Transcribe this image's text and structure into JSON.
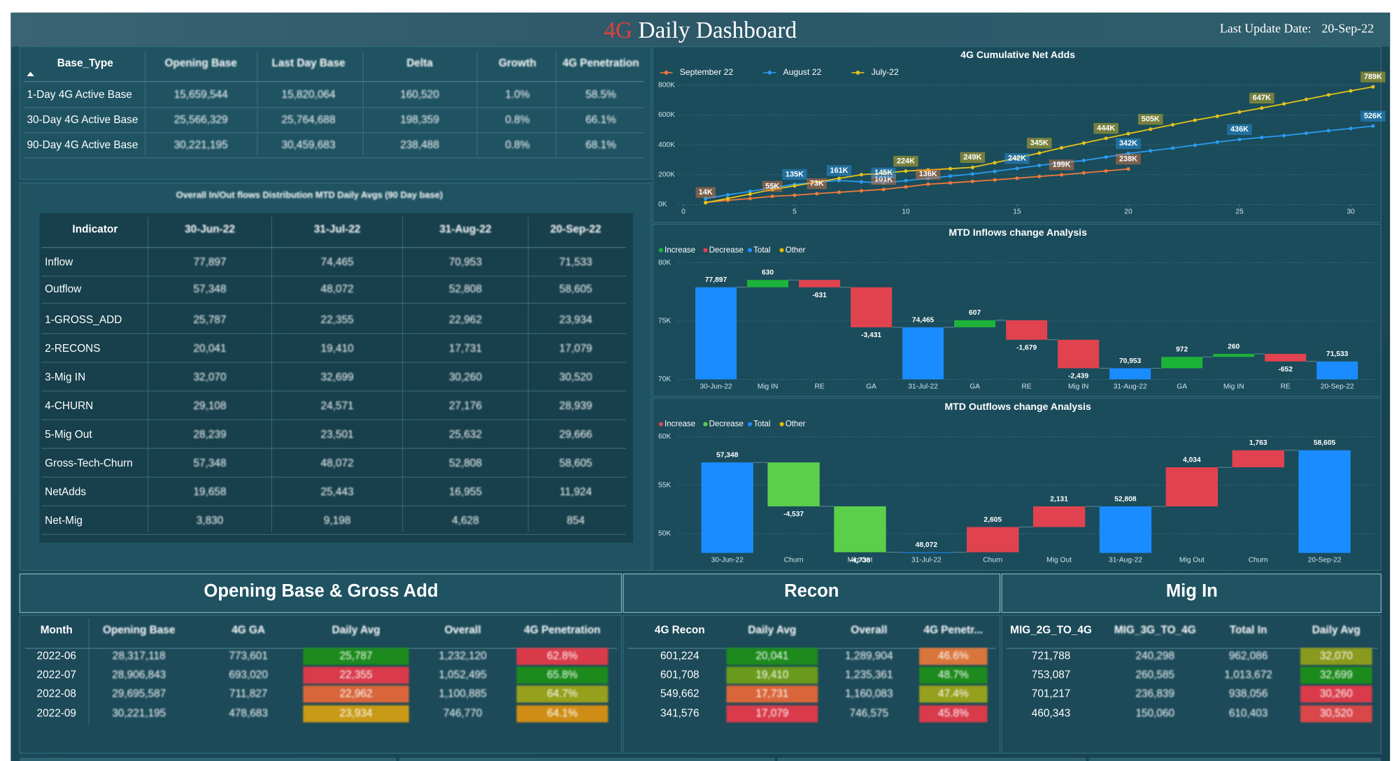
{
  "header": {
    "title_highlight": "4G",
    "title": "Daily Dashboard",
    "update_label": "Last Update Date:",
    "update_date": "20-Sep-22"
  },
  "base_table": {
    "columns": [
      "Base_Type",
      "Opening Base",
      "Last Day Base",
      "Delta",
      "Growth",
      "4G Penetration"
    ],
    "rows": [
      [
        "1-Day 4G Active Base",
        "15,659,544",
        "15,820,064",
        "160,520",
        "1.0%",
        "58.5%"
      ],
      [
        "30-Day 4G Active Base",
        "25,566,329",
        "25,764,688",
        "198,359",
        "0.8%",
        "66.1%"
      ],
      [
        "90-Day 4G Active Base",
        "30,221,195",
        "30,459,683",
        "238,488",
        "0.8%",
        "68.1%"
      ]
    ]
  },
  "flows_table": {
    "title": "Overall In/Out flows Distribution MTD Daily Avgs (90 Day base)",
    "columns": [
      "Indicator",
      "30-Jun-22",
      "31-Jul-22",
      "31-Aug-22",
      "20-Sep-22"
    ],
    "rows": [
      [
        "Inflow",
        "77,897",
        "74,465",
        "70,953",
        "71,533"
      ],
      [
        "Outflow",
        "57,348",
        "48,072",
        "52,808",
        "58,605"
      ],
      [
        "1-GROSS_ADD",
        "25,787",
        "22,355",
        "22,962",
        "23,934"
      ],
      [
        "2-RECONS",
        "20,041",
        "19,410",
        "17,731",
        "17,079"
      ],
      [
        "3-Mig IN",
        "32,070",
        "32,699",
        "30,260",
        "30,520"
      ],
      [
        "4-CHURN",
        "29,108",
        "24,571",
        "27,176",
        "28,939"
      ],
      [
        "5-Mig Out",
        "28,239",
        "23,501",
        "25,632",
        "29,666"
      ],
      [
        "Gross-Tech-Churn",
        "57,348",
        "48,072",
        "52,808",
        "58,605"
      ],
      [
        "NetAdds",
        "19,658",
        "25,443",
        "16,955",
        "11,924"
      ],
      [
        "Net-Mig",
        "3,830",
        "9,198",
        "4,628",
        "854"
      ]
    ]
  },
  "opening_table": {
    "title": "Opening Base & Gross Add",
    "columns": [
      "Month",
      "Opening Base",
      "4G GA",
      "Daily Avg",
      "Overall",
      "4G Penetration"
    ],
    "rows": [
      [
        "2022-06",
        "28,317,118",
        "773,601",
        "25,787",
        "1,232,120",
        "62.8%"
      ],
      [
        "2022-07",
        "28,906,843",
        "693,020",
        "22,355",
        "1,052,495",
        "65.8%"
      ],
      [
        "2022-08",
        "29,695,587",
        "711,827",
        "22,962",
        "1,100,885",
        "64.7%"
      ],
      [
        "2022-09",
        "30,221,195",
        "478,683",
        "23,934",
        "746,770",
        "64.1%"
      ]
    ],
    "cell_colors": {
      "3": [
        "#1f8a1f",
        "#d93b4c",
        "#d9663a",
        "#c99a12"
      ],
      "5": [
        "#d93b4c",
        "#1f8a1f",
        "#96a01a",
        "#cf8d18"
      ]
    }
  },
  "recon_table": {
    "title": "Recon",
    "columns": [
      "4G Recon",
      "Daily Avg",
      "Overall",
      "4G Penetr..."
    ],
    "rows": [
      [
        "601,224",
        "20,041",
        "1,289,904",
        "46.6%"
      ],
      [
        "601,708",
        "19,410",
        "1,235,361",
        "48.7%"
      ],
      [
        "549,662",
        "17,731",
        "1,160,083",
        "47.4%"
      ],
      [
        "341,576",
        "17,079",
        "746,575",
        "45.8%"
      ]
    ],
    "cell_colors": {
      "1": [
        "#1f8a1f",
        "#6a9a1a",
        "#d9663a",
        "#d93b4c"
      ],
      "3": [
        "#d9763a",
        "#1f8a1f",
        "#96a01a",
        "#d93b4c"
      ]
    }
  },
  "mig_in_table": {
    "title": "Mig In",
    "columns": [
      "MIG_2G_TO_4G",
      "MIG_3G_TO_4G",
      "Total In",
      "Daily Avg"
    ],
    "rows": [
      [
        "721,788",
        "240,298",
        "962,086",
        "32,070"
      ],
      [
        "753,087",
        "260,585",
        "1,013,672",
        "32,699"
      ],
      [
        "701,217",
        "236,839",
        "938,056",
        "30,260"
      ],
      [
        "460,343",
        "150,060",
        "610,403",
        "30,520"
      ]
    ],
    "cell_colors": {
      "3": [
        "#8a9a1a",
        "#1f8a1f",
        "#d93b4c",
        "#d9464a"
      ]
    }
  },
  "chart_data": [
    {
      "type": "line",
      "title": "4G Cumulative Net Adds",
      "x": [
        1,
        2,
        3,
        4,
        5,
        6,
        7,
        8,
        9,
        10,
        11,
        12,
        13,
        14,
        15,
        16,
        17,
        18,
        19,
        20,
        21,
        22,
        23,
        24,
        25,
        26,
        27,
        28,
        29,
        30,
        31
      ],
      "xlim": [
        0,
        31
      ],
      "xticks": [
        0,
        5,
        10,
        15,
        20,
        25,
        30
      ],
      "ylim": [
        0,
        800000
      ],
      "yticks": [
        {
          "value": 0,
          "label": "0K"
        },
        {
          "value": 200000,
          "label": "200K"
        },
        {
          "value": 400000,
          "label": "400K"
        },
        {
          "value": 600000,
          "label": "600K"
        },
        {
          "value": 800000,
          "label": "800K"
        }
      ],
      "grid": true,
      "series": [
        {
          "name": "September 22",
          "color": "#f07a3a",
          "values": [
            14000,
            28000,
            40000,
            55000,
            62000,
            73000,
            82000,
            92000,
            101000,
            118000,
            136000,
            145000,
            155000,
            165000,
            176000,
            188000,
            199000,
            212000,
            225000,
            238000,
            null,
            null,
            null,
            null,
            null,
            null,
            null,
            null,
            null,
            null,
            null
          ],
          "value_labels": [
            "14K",
            null,
            null,
            "55K",
            null,
            "73K",
            null,
            null,
            "101K",
            null,
            "136K",
            null,
            null,
            null,
            null,
            null,
            "199K",
            null,
            null,
            "238K",
            null,
            null,
            null,
            null,
            null,
            null,
            null,
            null,
            null,
            null,
            null
          ]
        },
        {
          "name": "August 22",
          "color": "#2a9bf0",
          "values": [
            40000,
            65000,
            88000,
            112000,
            135000,
            148000,
            161000,
            152000,
            145000,
            160000,
            175000,
            190000,
            205000,
            222000,
            242000,
            262000,
            280000,
            295000,
            318000,
            342000,
            360000,
            378000,
            398000,
            418000,
            436000,
            450000,
            462000,
            478000,
            495000,
            510000,
            526000
          ],
          "value_labels": [
            null,
            null,
            null,
            null,
            "135K",
            null,
            "161K",
            null,
            "145K",
            null,
            null,
            null,
            null,
            null,
            "242K",
            null,
            null,
            null,
            null,
            "342K",
            null,
            null,
            null,
            null,
            "436K",
            null,
            null,
            null,
            null,
            null,
            "526K"
          ]
        },
        {
          "name": "July-22",
          "color": "#e6c21a",
          "values": [
            12000,
            40000,
            70000,
            100000,
            125000,
            150000,
            175000,
            200000,
            210000,
            224000,
            232000,
            240000,
            249000,
            280000,
            312000,
            345000,
            380000,
            412000,
            444000,
            475000,
            505000,
            535000,
            565000,
            592000,
            620000,
            647000,
            675000,
            705000,
            735000,
            762000,
            789000
          ],
          "value_labels": [
            null,
            null,
            null,
            null,
            null,
            null,
            null,
            null,
            null,
            "224K",
            null,
            null,
            "249K",
            null,
            null,
            "345K",
            null,
            null,
            "444K",
            null,
            "505K",
            null,
            null,
            null,
            null,
            "647K",
            null,
            null,
            null,
            null,
            "789K"
          ]
        }
      ]
    },
    {
      "type": "waterfall",
      "title": "MTD Inflows change Analysis",
      "categories": [
        "30-Jun-22",
        "Mig IN",
        "RE",
        "GA",
        "31-Jul-22",
        "GA",
        "RE",
        "Mig IN",
        "31-Aug-22",
        "GA",
        "Mig IN",
        "RE",
        "20-Sep-22"
      ],
      "ylim": [
        70000,
        80000
      ],
      "yticks": [
        {
          "value": 70000,
          "label": "70K"
        },
        {
          "value": 75000,
          "label": "75K"
        },
        {
          "value": 80000,
          "label": "80K"
        }
      ],
      "grid": true,
      "series": [
        {
          "name": "Increase",
          "color": "#1db33a",
          "kind": "delta",
          "values": [
            null,
            630,
            null,
            null,
            null,
            607,
            null,
            null,
            null,
            972,
            260,
            null,
            null
          ],
          "value_labels": [
            null,
            "630",
            null,
            null,
            null,
            "607",
            null,
            null,
            null,
            "972",
            "260",
            null,
            null
          ]
        },
        {
          "name": "Decrease",
          "color": "#e0434f",
          "kind": "delta",
          "values": [
            null,
            null,
            -631,
            -3431,
            null,
            null,
            -1679,
            -2439,
            null,
            null,
            null,
            -652,
            null
          ],
          "value_labels": [
            null,
            null,
            "-631",
            "-3,431",
            null,
            null,
            "-1,679",
            "-2,439",
            null,
            null,
            null,
            "-652",
            null
          ]
        },
        {
          "name": "Total",
          "color": "#1a8cff",
          "kind": "total",
          "values": [
            77897,
            null,
            null,
            null,
            74465,
            null,
            null,
            null,
            70953,
            null,
            null,
            null,
            71533
          ],
          "value_labels": [
            "77,897",
            null,
            null,
            null,
            "74,465",
            null,
            null,
            null,
            "70,953",
            null,
            null,
            null,
            "71,533"
          ]
        },
        {
          "name": "Other",
          "color": "#e6b800",
          "kind": "delta",
          "values": [
            null,
            null,
            null,
            null,
            null,
            null,
            null,
            null,
            null,
            null,
            null,
            null,
            null
          ]
        }
      ]
    },
    {
      "type": "waterfall",
      "title": "MTD Outflows change Analysis",
      "categories": [
        "30-Jun-22",
        "Churn",
        "Mig Out",
        "31-Jul-22",
        "Churn",
        "Mig Out",
        "31-Aug-22",
        "Mig Out",
        "Churn",
        "20-Sep-22"
      ],
      "ylim": [
        48000,
        60000
      ],
      "yticks": [
        {
          "value": 50000,
          "label": "50K"
        },
        {
          "value": 55000,
          "label": "55K"
        },
        {
          "value": 60000,
          "label": "60K"
        }
      ],
      "grid": true,
      "series": [
        {
          "name": "Increase",
          "color": "#e0434f",
          "kind": "delta",
          "values": [
            null,
            null,
            null,
            null,
            2605,
            2131,
            null,
            4034,
            1763,
            null
          ],
          "value_labels": [
            null,
            null,
            null,
            null,
            "2,605",
            "2,131",
            null,
            "4,034",
            "1,763",
            null
          ]
        },
        {
          "name": "Decrease",
          "color": "#5ccf4a",
          "kind": "delta",
          "values": [
            null,
            -4537,
            -4738,
            null,
            null,
            null,
            null,
            null,
            null,
            null
          ],
          "value_labels": [
            null,
            "-4,537",
            "-4,738",
            null,
            null,
            null,
            null,
            null,
            null,
            null
          ]
        },
        {
          "name": "Total",
          "color": "#1a8cff",
          "kind": "total",
          "values": [
            57348,
            null,
            null,
            48072,
            null,
            null,
            52808,
            null,
            null,
            58605
          ],
          "value_labels": [
            "57,348",
            null,
            null,
            "48,072",
            null,
            null,
            "52,808",
            null,
            null,
            "58,605"
          ]
        },
        {
          "name": "Other",
          "color": "#e6b800",
          "kind": "delta",
          "values": [
            null,
            null,
            null,
            null,
            null,
            null,
            null,
            null,
            null,
            null
          ]
        }
      ]
    }
  ]
}
